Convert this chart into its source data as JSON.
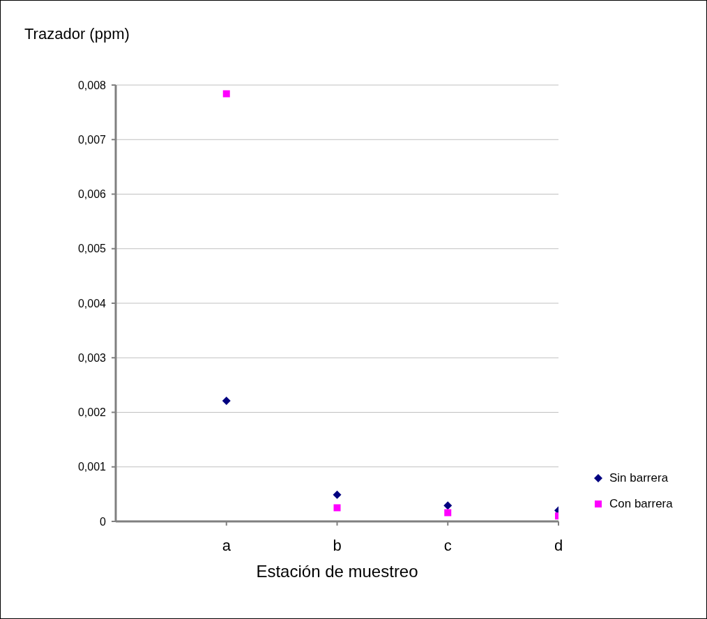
{
  "chart_data": {
    "type": "scatter",
    "ylabel": "Trazador (ppm)",
    "xlabel": "Estación de muestreo",
    "categories": [
      "a",
      "b",
      "c",
      "d"
    ],
    "series": [
      {
        "name": "Sin barrera",
        "color": "#000080",
        "marker": "diamond",
        "values": [
          0.00221,
          0.00049,
          0.00029,
          0.0002
        ]
      },
      {
        "name": "Con barrera",
        "color": "#ff00ff",
        "marker": "square",
        "values": [
          0.00784,
          0.00025,
          0.00016,
          0.0001
        ]
      }
    ],
    "ylim": [
      0,
      0.008
    ],
    "yticks": [
      0,
      {
        "value": 0.001,
        "label": "0,001"
      },
      {
        "value": 0.002,
        "label": "0,002"
      },
      {
        "value": 0.003,
        "label": "0,003"
      },
      {
        "value": 0.004,
        "label": "0,004"
      },
      {
        "value": 0.005,
        "label": "0,005"
      },
      {
        "value": 0.006,
        "label": "0,006"
      },
      {
        "value": 0.007,
        "label": "0,007"
      },
      {
        "value": 0.008,
        "label": "0,008"
      }
    ],
    "grid": "y",
    "legend": "right"
  }
}
